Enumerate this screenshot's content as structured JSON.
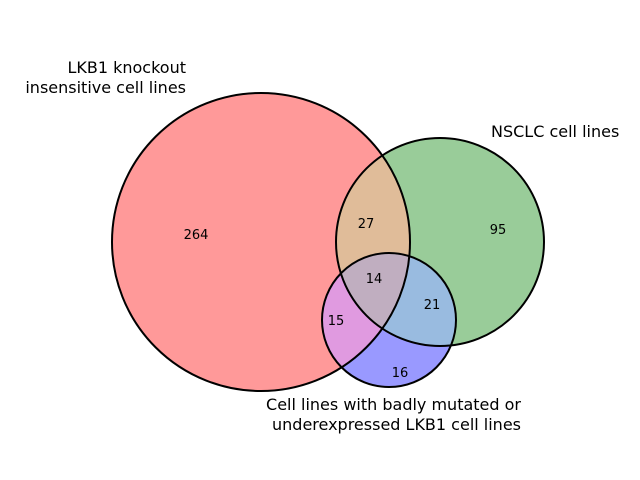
{
  "chart_data": {
    "type": "venn3",
    "sets": [
      {
        "name": "LKB1 knockout insensitive cell lines",
        "label_lines": [
          "LKB1 knockout",
          "insensitive cell lines"
        ],
        "color": "#ff9999"
      },
      {
        "name": "NSCLC cell lines",
        "label_lines": [
          "NSCLC cell lines"
        ],
        "color": "#99cc99"
      },
      {
        "name": "Cell lines with badly mutated or underexpressed LKB1 cell lines",
        "label_lines": [
          "Cell lines with badly mutated or",
          "underexpressed LKB1 cell lines"
        ],
        "color": "#9999ff"
      }
    ],
    "regions": {
      "only_A": 264,
      "only_B": 95,
      "only_C": 16,
      "A_and_B": 27,
      "A_and_C": 15,
      "B_and_C": 21,
      "A_B_C": 14
    },
    "colors": {
      "A_and_B": "#e0bc99",
      "A_and_C": "#e09ae0",
      "B_and_C": "#99bbe0",
      "A_B_C": "#c0aec0",
      "outline": "#000000"
    }
  }
}
